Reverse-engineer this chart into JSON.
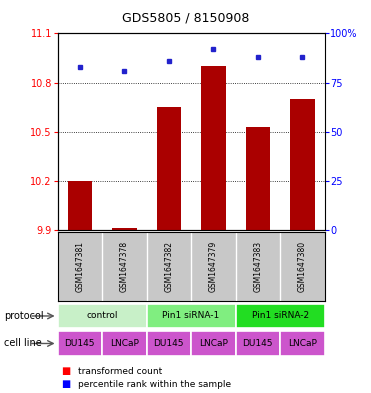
{
  "title": "GDS5805 / 8150908",
  "samples": [
    "GSM1647381",
    "GSM1647378",
    "GSM1647382",
    "GSM1647379",
    "GSM1647383",
    "GSM1647380"
  ],
  "red_values": [
    10.2,
    9.91,
    10.65,
    10.9,
    10.53,
    10.7
  ],
  "blue_values": [
    83,
    81,
    86,
    92,
    88,
    88
  ],
  "ylim_left": [
    9.9,
    11.1
  ],
  "ylim_right": [
    0,
    100
  ],
  "yticks_left": [
    9.9,
    10.2,
    10.5,
    10.8,
    11.1
  ],
  "ytick_labels_left": [
    "9.9",
    "10.2",
    "10.5",
    "10.8",
    "11.1"
  ],
  "yticks_right": [
    0,
    25,
    50,
    75,
    100
  ],
  "ytick_labels_right": [
    "0",
    "25",
    "50",
    "75",
    "100%"
  ],
  "gridlines": [
    10.2,
    10.5,
    10.8
  ],
  "protocol_groups": [
    {
      "label": "control",
      "start": 0,
      "end": 2,
      "color": "#c8f0c8"
    },
    {
      "label": "Pin1 siRNA-1",
      "start": 2,
      "end": 4,
      "color": "#80ee80"
    },
    {
      "label": "Pin1 siRNA-2",
      "start": 4,
      "end": 6,
      "color": "#22dd22"
    }
  ],
  "cell_lines": [
    "DU145",
    "LNCaP",
    "DU145",
    "LNCaP",
    "DU145",
    "LNCaP"
  ],
  "cell_color": "#cc55cc",
  "bar_color": "#aa0000",
  "dot_color": "#2222cc",
  "bar_width": 0.55,
  "background_color": "#ffffff",
  "protocol_label": "protocol",
  "cell_line_label": "cell line",
  "legend_red": "transformed count",
  "legend_blue": "percentile rank within the sample",
  "title_fontsize": 9,
  "axis_fontsize": 7,
  "sample_fontsize": 5.5,
  "cell_fontsize": 6.5,
  "proto_fontsize": 6.5,
  "legend_fontsize": 6.5
}
